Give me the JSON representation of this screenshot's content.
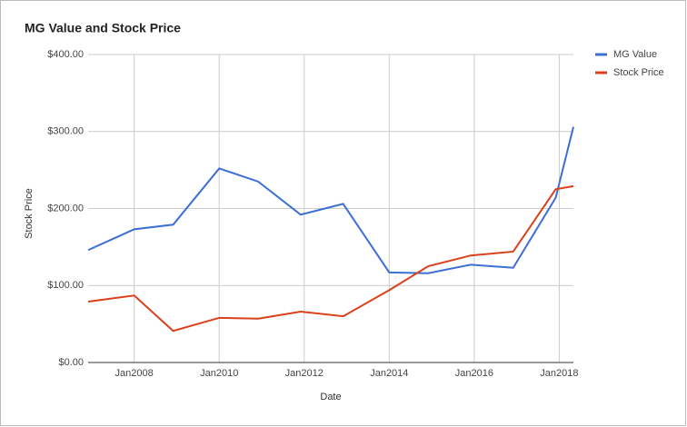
{
  "chart_data": {
    "type": "line",
    "title": "MG Value and Stock Price",
    "x_label": "Date",
    "y_label": "Stock Price",
    "x": [
      "2006-12",
      "2008-01",
      "2008-12",
      "2010-01",
      "2010-12",
      "2011-12",
      "2012-12",
      "2014-01",
      "2014-12",
      "2015-12",
      "2016-12",
      "2017-12",
      "2018-05"
    ],
    "series": [
      {
        "name": "MG Value",
        "color": "#3c6fd4",
        "values": [
          146,
          173,
          179,
          252,
          235,
          192,
          206,
          117,
          116,
          127,
          123,
          214,
          306
        ]
      },
      {
        "name": "Stock Price",
        "color": "#d9401b",
        "values": [
          79,
          87,
          41,
          58,
          57,
          66,
          60,
          94,
          125,
          139,
          144,
          225,
          229
        ]
      }
    ],
    "xlim": [
      "2006-12",
      "2018-05"
    ],
    "xticks": [
      {
        "value": "2008-01",
        "label": "Jan2008"
      },
      {
        "value": "2010-01",
        "label": "Jan2010"
      },
      {
        "value": "2012-01",
        "label": "Jan2012"
      },
      {
        "value": "2014-01",
        "label": "Jan2014"
      },
      {
        "value": "2016-01",
        "label": "Jan2016"
      },
      {
        "value": "2018-01",
        "label": "Jan2018"
      }
    ],
    "ylim": [
      0,
      400
    ],
    "yticks": [
      {
        "value": 0,
        "label": "$0.00"
      },
      {
        "value": 100,
        "label": "$100.00"
      },
      {
        "value": 200,
        "label": "$200.00"
      },
      {
        "value": 300,
        "label": "$300.00"
      },
      {
        "value": 400,
        "label": "$400.00"
      }
    ],
    "grid": true,
    "legend": "right"
  }
}
